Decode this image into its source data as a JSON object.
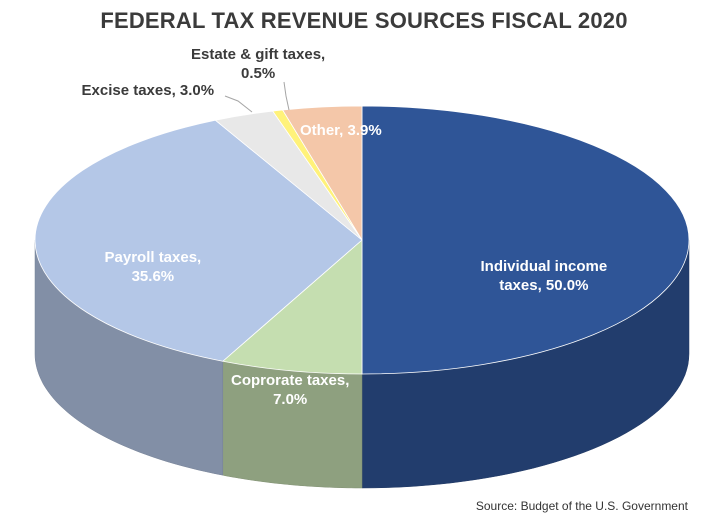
{
  "title": "FEDERAL TAX REVENUE SOURCES FISCAL 2020",
  "source": "Source: Budget of the U.S. Government",
  "chart_data": {
    "type": "pie",
    "title": "FEDERAL TAX REVENUE SOURCES FISCAL 2020",
    "slices": [
      {
        "label_line1": "Individual income",
        "label_line2": "taxes, 50.0%",
        "value": 50.0,
        "color": "#2f5597"
      },
      {
        "label_line1": "Coprorate taxes,",
        "label_line2": "7.0%",
        "value": 7.0,
        "color": "#c5deb0"
      },
      {
        "label_line1": "Payroll taxes,",
        "label_line2": "35.6%",
        "value": 35.6,
        "color": "#b4c7e7"
      },
      {
        "label_line1": "Excise taxes, 3.0%",
        "label_line2": "",
        "value": 3.0,
        "color": "#e8e8e8"
      },
      {
        "label_line1": "Estate & gift taxes,",
        "label_line2": "0.5%",
        "value": 0.5,
        "color": "#fff27a"
      },
      {
        "label_line1": "Other, 3.9%",
        "label_line2": "",
        "value": 3.9,
        "color": "#f4c7a9"
      }
    ]
  }
}
